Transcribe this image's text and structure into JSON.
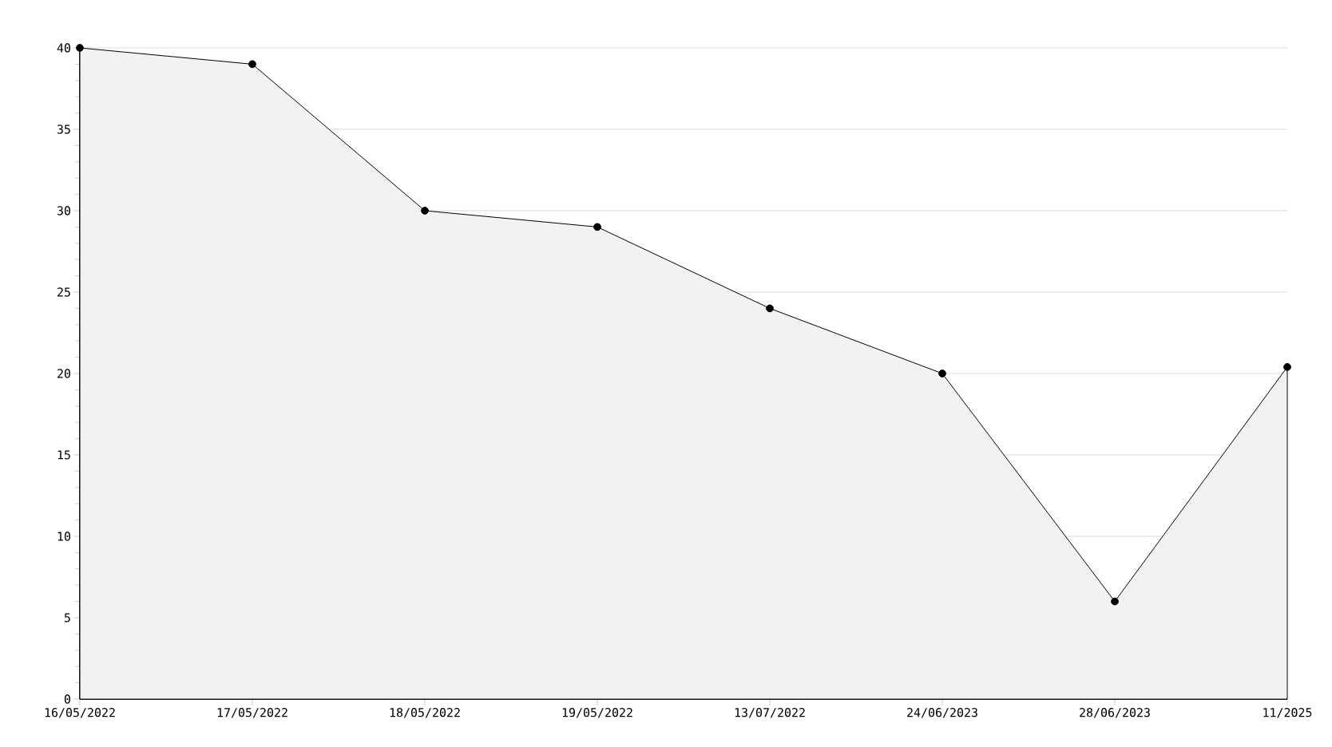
{
  "chart_data": {
    "type": "area",
    "categories": [
      "16/05/2022",
      "17/05/2022",
      "18/05/2022",
      "19/05/2022",
      "13/07/2022",
      "24/06/2023",
      "28/06/2023",
      "11/2025"
    ],
    "values": [
      40,
      39,
      30,
      29,
      24,
      20,
      6,
      20.4
    ],
    "color": "#000000",
    "ylim": [
      0,
      40
    ],
    "yticks": [
      0,
      5,
      10,
      15,
      20,
      25,
      30,
      35,
      40
    ],
    "grid": "y",
    "marker": "circle"
  }
}
